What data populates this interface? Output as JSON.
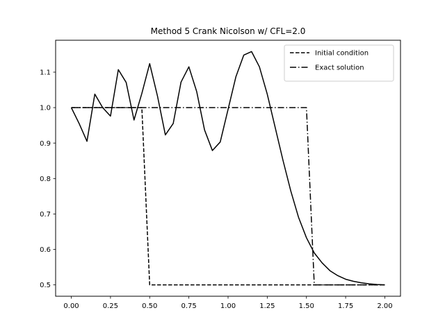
{
  "chart_data": {
    "type": "line",
    "title": "Method 5 Crank Nicolson w/ CFL=2.0",
    "xlabel": "",
    "ylabel": "",
    "xlim": [
      -0.1,
      2.1
    ],
    "ylim": [
      0.468,
      1.19
    ],
    "xticks": [
      0.0,
      0.25,
      0.5,
      0.75,
      1.0,
      1.25,
      1.5,
      1.75,
      2.0
    ],
    "xtick_labels": [
      "0.00",
      "0.25",
      "0.50",
      "0.75",
      "1.00",
      "1.25",
      "1.50",
      "1.75",
      "2.00"
    ],
    "yticks": [
      0.5,
      0.6,
      0.7,
      0.8,
      0.9,
      1.0,
      1.1
    ],
    "ytick_labels": [
      "0.5",
      "0.6",
      "0.7",
      "0.8",
      "0.9",
      "1.0",
      "1.1"
    ],
    "grid": false,
    "legend_position": "top-right",
    "series": [
      {
        "name": "Initial condition",
        "style": "dashed",
        "color": "#000000",
        "x": [
          0.0,
          0.45,
          0.5,
          2.0
        ],
        "y": [
          1.0,
          1.0,
          0.5,
          0.5
        ]
      },
      {
        "name": "Exact solution",
        "style": "dashdot",
        "color": "#000000",
        "x": [
          0.0,
          1.5,
          1.55,
          2.0
        ],
        "y": [
          1.0,
          1.0,
          0.5,
          0.5
        ]
      },
      {
        "name": "",
        "style": "solid",
        "color": "#000000",
        "x": [
          0.0,
          0.05,
          0.1,
          0.15,
          0.2,
          0.25,
          0.3,
          0.35,
          0.4,
          0.45,
          0.5,
          0.55,
          0.6,
          0.65,
          0.7,
          0.75,
          0.8,
          0.85,
          0.9,
          0.95,
          1.0,
          1.05,
          1.1,
          1.15,
          1.2,
          1.25,
          1.3,
          1.35,
          1.4,
          1.45,
          1.5,
          1.55,
          1.6,
          1.65,
          1.7,
          1.75,
          1.8,
          1.85,
          1.9,
          1.95,
          2.0
        ],
        "y": [
          1.0,
          0.955,
          0.905,
          1.038,
          1.0,
          0.976,
          1.107,
          1.071,
          0.965,
          1.04,
          1.124,
          1.032,
          0.923,
          0.955,
          1.072,
          1.115,
          1.045,
          0.937,
          0.879,
          0.903,
          0.995,
          1.087,
          1.148,
          1.158,
          1.115,
          1.038,
          0.945,
          0.852,
          0.765,
          0.69,
          0.633,
          0.59,
          0.562,
          0.54,
          0.526,
          0.516,
          0.51,
          0.506,
          0.503,
          0.501,
          0.5
        ]
      }
    ]
  }
}
